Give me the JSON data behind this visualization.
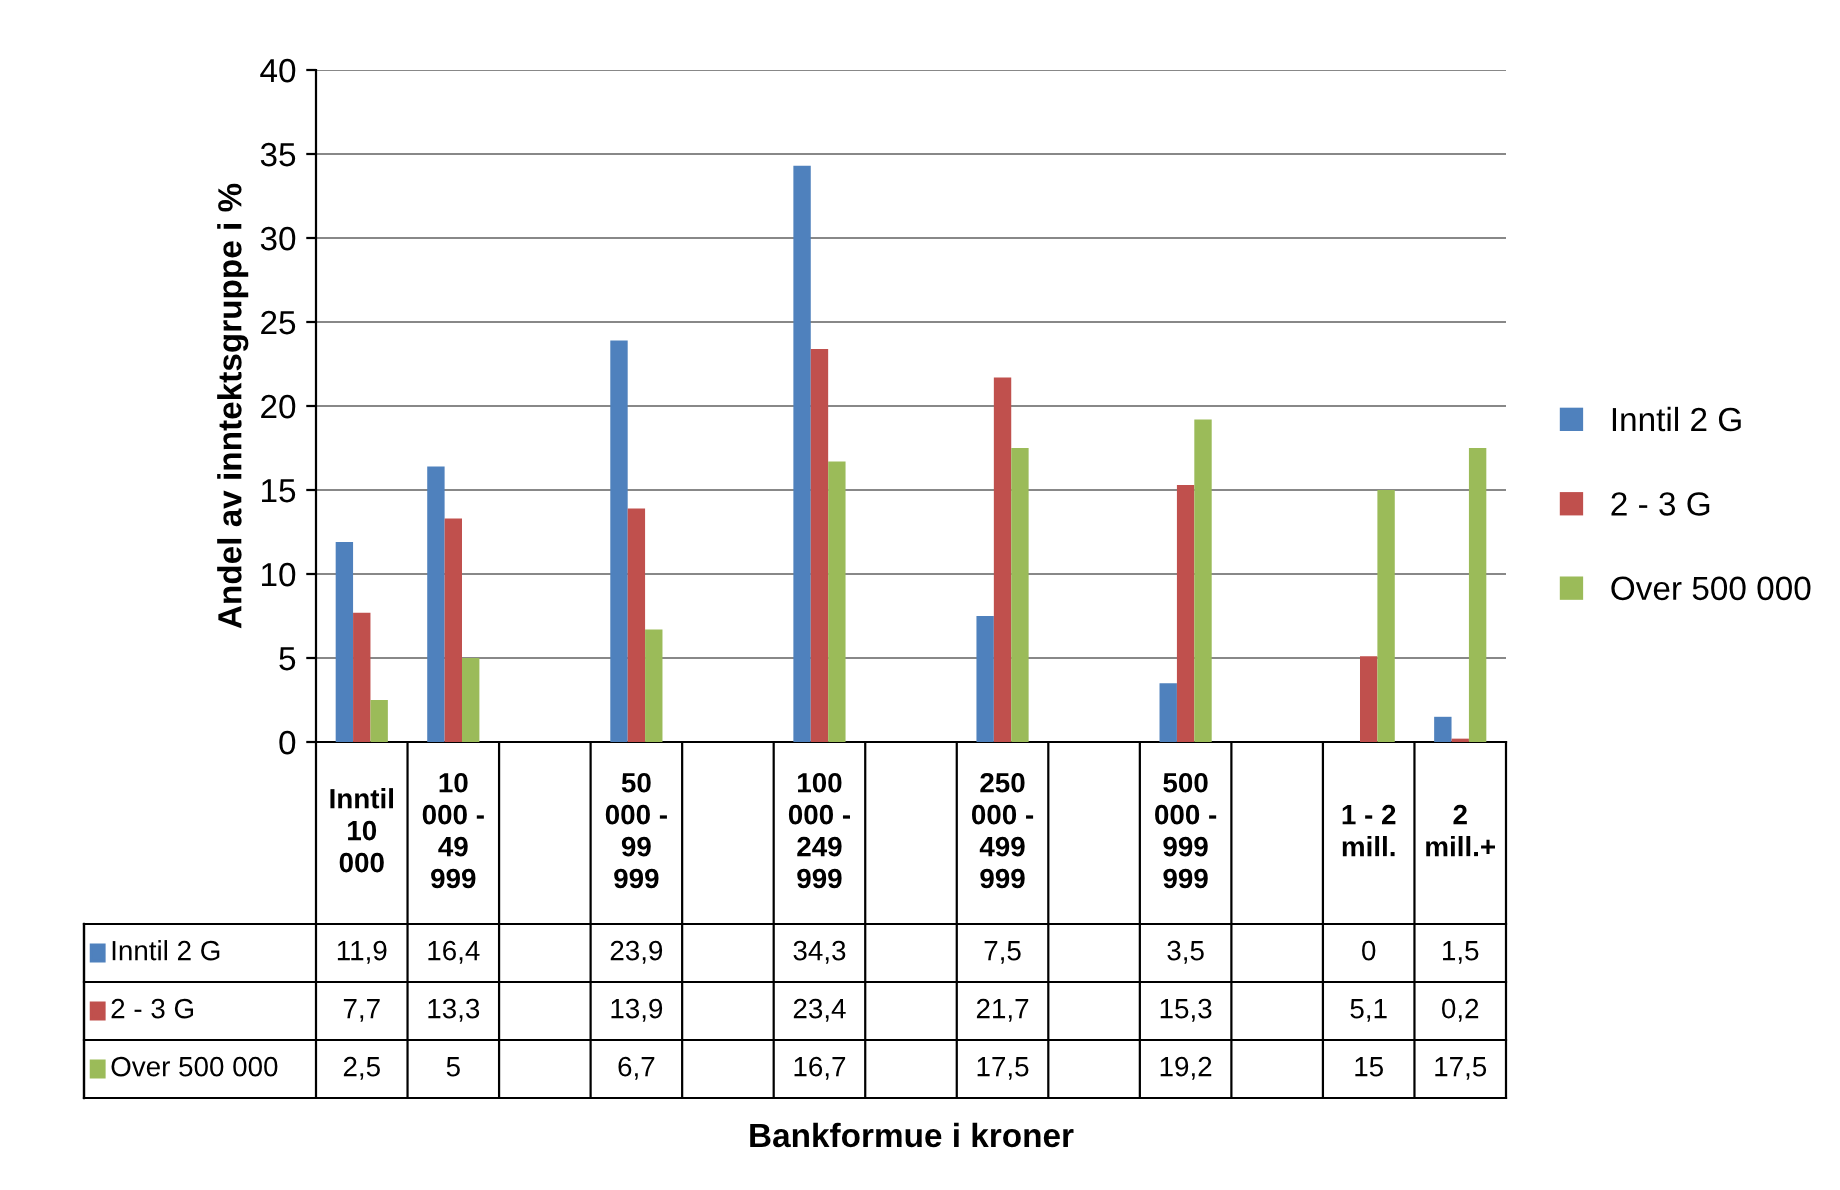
{
  "chart_data": {
    "type": "bar",
    "categories": [
      "Inntil\n10\n000",
      "10\n000 -\n49\n999",
      null,
      "50\n000 -\n99\n999",
      null,
      "100\n000 -\n249\n999",
      null,
      "250\n000 -\n499\n999",
      null,
      "500\n000 -\n999\n999",
      null,
      "1 - 2\nmill.",
      "2\nmill.+"
    ],
    "series": [
      {
        "name": "Inntil 2 G",
        "color": "#4f81bd",
        "values": [
          11.9,
          16.4,
          null,
          23.9,
          null,
          34.3,
          null,
          7.5,
          null,
          3.5,
          null,
          0,
          1.5
        ],
        "value_labels": [
          "11,9",
          "16,4",
          null,
          "23,9",
          null,
          "34,3",
          null,
          "7,5",
          null,
          "3,5",
          null,
          "0",
          "1,5"
        ]
      },
      {
        "name": "2 - 3 G",
        "color": "#c0504d",
        "values": [
          7.7,
          13.3,
          null,
          13.9,
          null,
          23.4,
          null,
          21.7,
          null,
          15.3,
          null,
          5.1,
          0.2
        ],
        "value_labels": [
          "7,7",
          "13,3",
          null,
          "13,9",
          null,
          "23,4",
          null,
          "21,7",
          null,
          "15,3",
          null,
          "5,1",
          "0,2"
        ]
      },
      {
        "name": "Over 500 000",
        "color": "#9bbb59",
        "values": [
          2.5,
          5,
          null,
          6.7,
          null,
          16.7,
          null,
          17.5,
          null,
          19.2,
          null,
          15,
          17.5
        ],
        "value_labels": [
          "2,5",
          "5",
          null,
          "6,7",
          null,
          "16,7",
          null,
          "17,5",
          null,
          "19,2",
          null,
          "15",
          "17,5"
        ]
      }
    ],
    "annotations": [
      "Bankformue i kroner"
    ],
    "ylabel": "Andel av inntektsgruppe i %",
    "ylim": [
      0,
      40
    ],
    "yticks": [
      0,
      5,
      10,
      15,
      20,
      25,
      30,
      35,
      40
    ],
    "grid": "y",
    "legend": "right"
  }
}
